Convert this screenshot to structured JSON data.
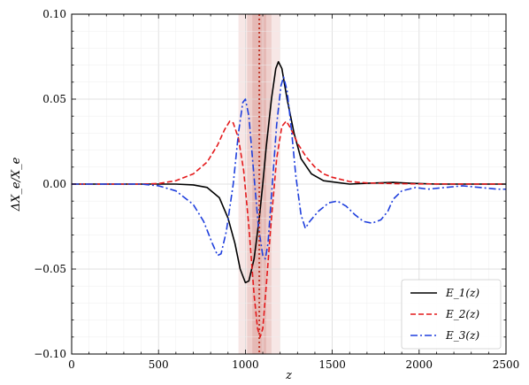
{
  "chart_data": {
    "type": "line",
    "title": "",
    "xlabel": "z",
    "ylabel": "ΔX_e/X_e",
    "xlim": [
      0,
      2500
    ],
    "ylim": [
      -0.1,
      0.1
    ],
    "x_ticks": [
      0,
      500,
      1000,
      1500,
      2000,
      2500
    ],
    "x_tick_labels": [
      "0",
      "500",
      "1000",
      "1500",
      "2000",
      "2500"
    ],
    "y_ticks": [
      -0.1,
      -0.05,
      0.0,
      0.05,
      0.1
    ],
    "y_tick_labels": [
      "−0.10",
      "−0.05",
      "0.00",
      "0.05",
      "0.10"
    ],
    "grid": true,
    "legend_position": "bottom-right",
    "vertical_line": {
      "x": 1080,
      "color": "#c0392b",
      "style": "dotted"
    },
    "shaded_bands": [
      {
        "x_range": [
          960,
          1200
        ],
        "color": "#f2d7d5"
      },
      {
        "x_range": [
          1010,
          1150
        ],
        "color": "#e8bfbb"
      },
      {
        "x_range": [
          1040,
          1120
        ],
        "color": "#dfaaa5"
      }
    ],
    "series": [
      {
        "name": "E_1(z)",
        "color": "#000000",
        "style": "solid",
        "points": [
          [
            0,
            0
          ],
          [
            400,
            0
          ],
          [
            600,
            0
          ],
          [
            700,
            -0.0005
          ],
          [
            780,
            -0.002
          ],
          [
            850,
            -0.008
          ],
          [
            900,
            -0.02
          ],
          [
            940,
            -0.035
          ],
          [
            970,
            -0.05
          ],
          [
            1000,
            -0.058
          ],
          [
            1020,
            -0.057
          ],
          [
            1050,
            -0.044
          ],
          [
            1080,
            -0.02
          ],
          [
            1100,
            0.0
          ],
          [
            1120,
            0.022
          ],
          [
            1150,
            0.05
          ],
          [
            1175,
            0.068
          ],
          [
            1190,
            0.072
          ],
          [
            1210,
            0.068
          ],
          [
            1240,
            0.05
          ],
          [
            1280,
            0.03
          ],
          [
            1320,
            0.015
          ],
          [
            1380,
            0.006
          ],
          [
            1450,
            0.002
          ],
          [
            1600,
            0.0
          ],
          [
            1700,
            0.0005
          ],
          [
            1850,
            0.001
          ],
          [
            1950,
            0.0005
          ],
          [
            2100,
            0.0
          ],
          [
            2500,
            0.0
          ]
        ]
      },
      {
        "name": "E_2(z)",
        "color": "#e41a1c",
        "style": "dashed",
        "points": [
          [
            0,
            0
          ],
          [
            400,
            0
          ],
          [
            500,
            0.0003
          ],
          [
            600,
            0.002
          ],
          [
            700,
            0.006
          ],
          [
            780,
            0.013
          ],
          [
            840,
            0.023
          ],
          [
            880,
            0.032
          ],
          [
            910,
            0.037
          ],
          [
            930,
            0.036
          ],
          [
            960,
            0.027
          ],
          [
            990,
            0.008
          ],
          [
            1020,
            -0.025
          ],
          [
            1050,
            -0.065
          ],
          [
            1070,
            -0.085
          ],
          [
            1085,
            -0.09
          ],
          [
            1100,
            -0.085
          ],
          [
            1120,
            -0.06
          ],
          [
            1150,
            -0.02
          ],
          [
            1180,
            0.015
          ],
          [
            1210,
            0.034
          ],
          [
            1235,
            0.037
          ],
          [
            1260,
            0.033
          ],
          [
            1300,
            0.024
          ],
          [
            1350,
            0.016
          ],
          [
            1400,
            0.01
          ],
          [
            1450,
            0.006
          ],
          [
            1500,
            0.004
          ],
          [
            1600,
            0.0015
          ],
          [
            1700,
            0.0007
          ],
          [
            1850,
            0.0003
          ],
          [
            2000,
            0.0001
          ],
          [
            2500,
            0.0
          ]
        ]
      },
      {
        "name": "E_3(z)",
        "color": "#1f3fdd",
        "style": "dashdot",
        "points": [
          [
            0,
            0
          ],
          [
            400,
            0
          ],
          [
            500,
            -0.001
          ],
          [
            600,
            -0.004
          ],
          [
            700,
            -0.012
          ],
          [
            760,
            -0.022
          ],
          [
            810,
            -0.035
          ],
          [
            840,
            -0.042
          ],
          [
            860,
            -0.041
          ],
          [
            890,
            -0.028
          ],
          [
            930,
            0.0
          ],
          [
            960,
            0.03
          ],
          [
            985,
            0.048
          ],
          [
            1000,
            0.05
          ],
          [
            1020,
            0.04
          ],
          [
            1045,
            0.01
          ],
          [
            1075,
            -0.025
          ],
          [
            1100,
            -0.042
          ],
          [
            1115,
            -0.044
          ],
          [
            1130,
            -0.035
          ],
          [
            1155,
            0.0
          ],
          [
            1180,
            0.035
          ],
          [
            1205,
            0.058
          ],
          [
            1220,
            0.063
          ],
          [
            1240,
            0.055
          ],
          [
            1265,
            0.032
          ],
          [
            1290,
            0.005
          ],
          [
            1320,
            -0.018
          ],
          [
            1345,
            -0.026
          ],
          [
            1370,
            -0.022
          ],
          [
            1420,
            -0.016
          ],
          [
            1480,
            -0.011
          ],
          [
            1530,
            -0.01
          ],
          [
            1580,
            -0.013
          ],
          [
            1630,
            -0.018
          ],
          [
            1680,
            -0.022
          ],
          [
            1730,
            -0.023
          ],
          [
            1780,
            -0.021
          ],
          [
            1820,
            -0.016
          ],
          [
            1850,
            -0.009
          ],
          [
            1900,
            -0.004
          ],
          [
            1980,
            -0.002
          ],
          [
            2050,
            -0.003
          ],
          [
            2150,
            -0.002
          ],
          [
            2250,
            -0.001
          ],
          [
            2350,
            -0.002
          ],
          [
            2450,
            -0.003
          ],
          [
            2500,
            -0.003
          ]
        ]
      }
    ],
    "legend": [
      {
        "label": "E_1(z)",
        "series_index": 0
      },
      {
        "label": "E_2(z)",
        "series_index": 1
      },
      {
        "label": "E_3(z)",
        "series_index": 2
      }
    ]
  }
}
